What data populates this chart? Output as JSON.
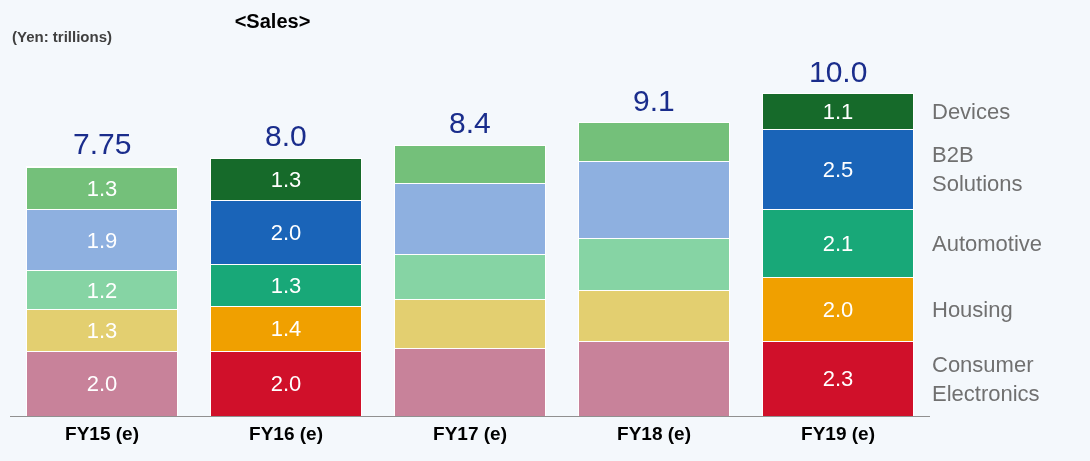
{
  "chart_data": {
    "type": "bar",
    "stacked": true,
    "title": "<Sales>",
    "subtitle": "(Yen: trillions)",
    "categories": [
      "FY15 (e)",
      "FY16 (e)",
      "FY17 (e)",
      "FY18 (e)",
      "FY19 (e)"
    ],
    "legend": false,
    "grid": false,
    "totals": [
      "7.75",
      "8.0",
      "8.4",
      "9.1",
      "10.0"
    ],
    "series": [
      {
        "name": "Consumer\nElectronics",
        "colors": [
          "#c8829a",
          "#d0102a",
          "#c8829a",
          "#c8829a",
          "#d0102a"
        ],
        "values": [
          2.0,
          2.0,
          2.1,
          2.3,
          2.3
        ],
        "value_labels": [
          "2.0",
          "2.0",
          null,
          null,
          "2.3"
        ]
      },
      {
        "name": "Housing",
        "colors": [
          "#e3cf70",
          "#f0a000",
          "#e3cf70",
          "#e3cf70",
          "#f0a000"
        ],
        "values": [
          1.3,
          1.4,
          1.5,
          1.6,
          2.0
        ],
        "value_labels": [
          "1.3",
          "1.4",
          null,
          null,
          "2.0"
        ]
      },
      {
        "name": "Automotive",
        "colors": [
          "#86d4a4",
          "#18a878",
          "#86d4a4",
          "#86d4a4",
          "#18a878"
        ],
        "values": [
          1.2,
          1.3,
          1.4,
          1.6,
          2.1
        ],
        "value_labels": [
          "1.2",
          "1.3",
          null,
          null,
          "2.1"
        ]
      },
      {
        "name": "B2B\nSolutions",
        "colors": [
          "#8eb0e0",
          "#1a64b8",
          "#8eb0e0",
          "#8eb0e0",
          "#1a64b8"
        ],
        "values": [
          1.9,
          2.0,
          2.2,
          2.4,
          2.5
        ],
        "value_labels": [
          "1.9",
          "2.0",
          null,
          null,
          "2.5"
        ]
      },
      {
        "name": "Devices",
        "colors": [
          "#74c07a",
          "#166a2a",
          "#74c07a",
          "#74c07a",
          "#166a2a"
        ],
        "values": [
          1.3,
          1.3,
          1.2,
          1.2,
          1.1
        ],
        "value_labels": [
          "1.3",
          "1.3",
          null,
          null,
          "1.1"
        ]
      },
      {
        "colors": [
          "#c8c8c8",
          null,
          null,
          null,
          null
        ],
        "values": [
          0.05,
          null,
          null,
          null,
          null
        ]
      }
    ]
  }
}
